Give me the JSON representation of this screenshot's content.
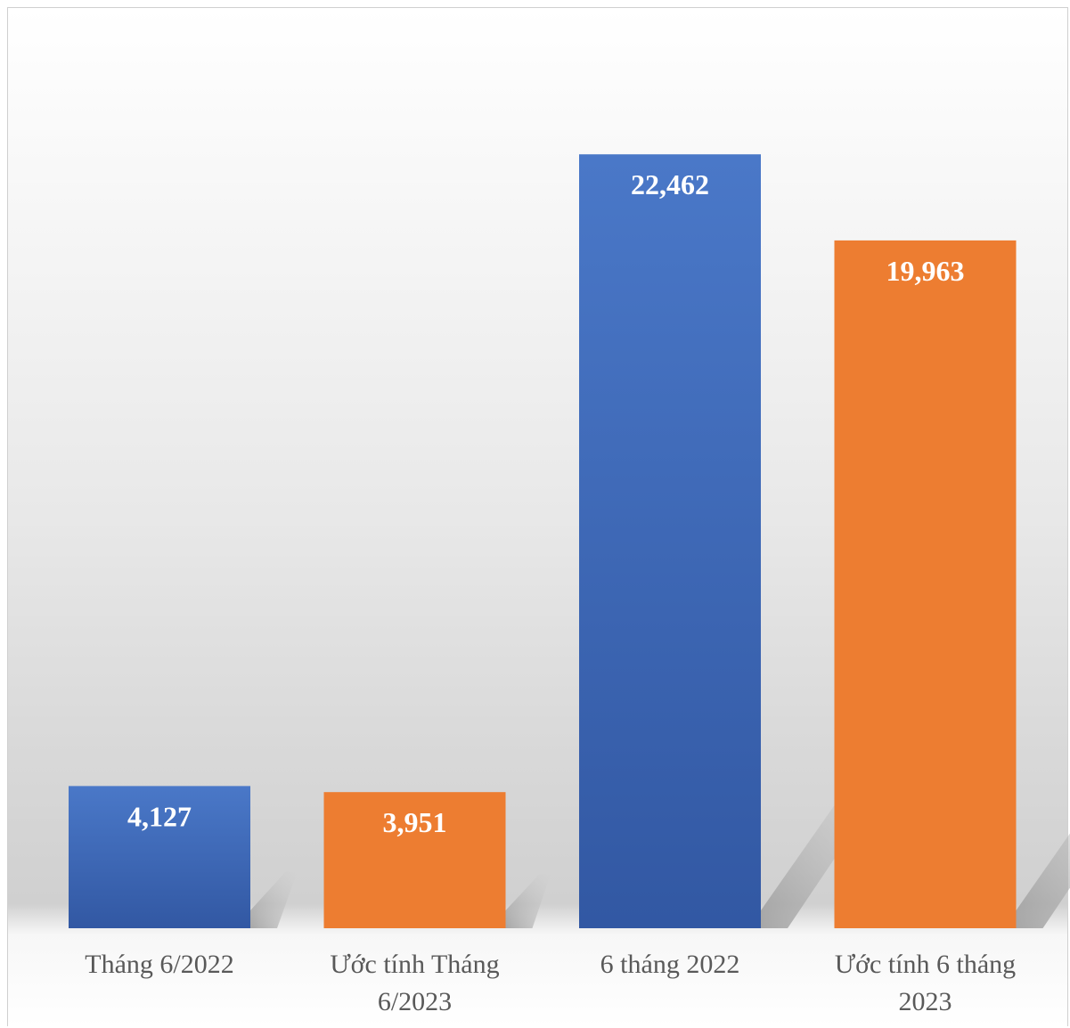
{
  "chart_data": {
    "type": "bar",
    "categories": [
      [
        "Tháng 6/2022"
      ],
      [
        "Ước tính Tháng",
        "6/2023"
      ],
      [
        "6 tháng 2022"
      ],
      [
        "Ước tính 6 tháng",
        "2023"
      ]
    ],
    "values": [
      4127,
      3951,
      22462,
      19963
    ],
    "data_labels": [
      "4,127",
      "3,951",
      "22,462",
      "19,963"
    ],
    "colors": [
      "#4472c4",
      "#ed7d31",
      "#4472c4",
      "#ed7d31"
    ],
    "ylim": [
      0,
      25000
    ],
    "grid": false,
    "legend": "none",
    "title": "",
    "xlabel": "",
    "ylabel": ""
  }
}
